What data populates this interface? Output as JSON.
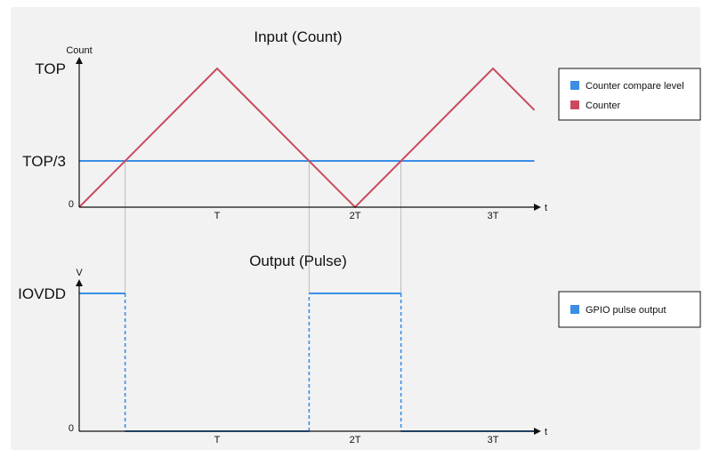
{
  "colors": {
    "compare": "#3a8ee6",
    "counter": "#c94a5e",
    "pulse": "#3a8ee6"
  },
  "chart_data": [
    {
      "type": "line",
      "title": "Input (Count)",
      "ylabel": "Count",
      "xlabel": "t",
      "xticks": [
        {
          "value": 1,
          "label": "T"
        },
        {
          "value": 2,
          "label": "2T"
        },
        {
          "value": 3,
          "label": "3T"
        }
      ],
      "yticks": [
        {
          "value": 0,
          "label": "0"
        },
        {
          "value": 0.333,
          "label": "TOP/3"
        },
        {
          "value": 1,
          "label": "TOP"
        }
      ],
      "xlim": [
        0,
        3.3
      ],
      "ylim": [
        0,
        1.12
      ],
      "series": [
        {
          "name": "Counter compare level",
          "x": [
            0,
            3.3
          ],
          "y": [
            0.333,
            0.333
          ]
        },
        {
          "name": "Counter",
          "x": [
            0,
            1,
            2,
            3,
            3.3
          ],
          "y": [
            0,
            1,
            0,
            1,
            0.7
          ]
        }
      ],
      "legend": "right"
    },
    {
      "type": "line",
      "title": "Output (Pulse)",
      "ylabel": "V",
      "xlabel": "t",
      "xticks": [
        {
          "value": 1,
          "label": "T"
        },
        {
          "value": 2,
          "label": "2T"
        },
        {
          "value": 3,
          "label": "3T"
        }
      ],
      "yticks": [
        {
          "value": 0,
          "label": "0"
        },
        {
          "value": 1,
          "label": "IOVDD"
        }
      ],
      "xlim": [
        0,
        3.3
      ],
      "ylim": [
        0,
        1.12
      ],
      "series": [
        {
          "name": "GPIO pulse output",
          "x": [
            0,
            0.333,
            0.333,
            1.667,
            1.667,
            2.333,
            2.333,
            3.3
          ],
          "y": [
            1,
            1,
            0,
            0,
            1,
            1,
            0,
            0
          ]
        }
      ],
      "legend": "right"
    }
  ]
}
